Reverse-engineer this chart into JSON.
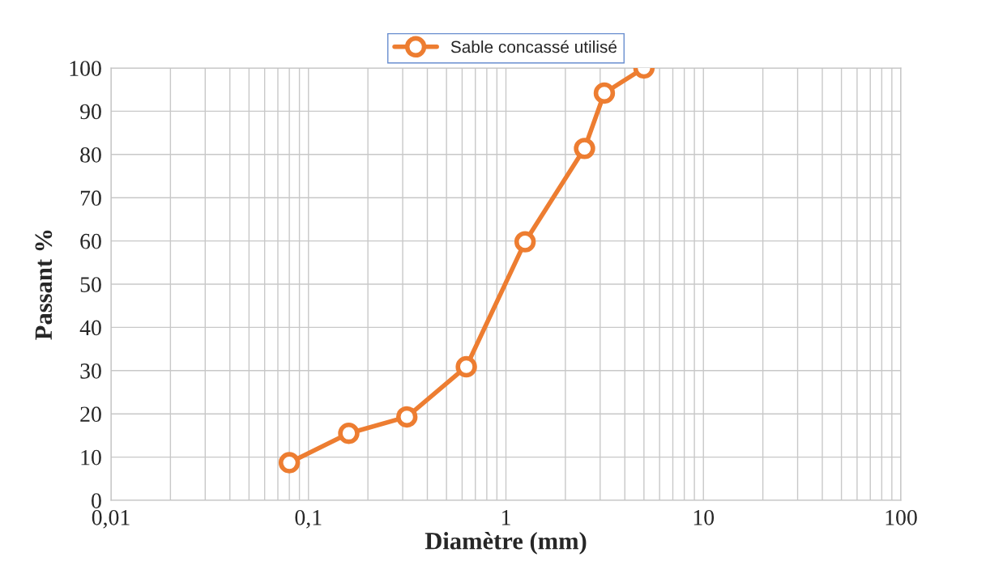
{
  "chart_data": {
    "type": "line",
    "xlabel": "Diamètre (mm)",
    "ylabel": "Passant %",
    "x": [
      0.08,
      0.16,
      0.315,
      0.63,
      1.25,
      2.5,
      3.15,
      5
    ],
    "series": [
      {
        "name": "Sable concassé utilisé",
        "color": "#ed7d31",
        "values": [
          8.7,
          15.5,
          19.3,
          30.9,
          59.8,
          81.4,
          94.2,
          100
        ]
      }
    ],
    "log": "x",
    "xlim": [
      0.01,
      100
    ],
    "xticks": [
      {
        "value": 0.01,
        "label": "0,01"
      },
      {
        "value": 0.1,
        "label": "0,1"
      },
      1,
      10,
      100
    ],
    "ylim": [
      0,
      100
    ],
    "yticks": [
      0,
      10,
      20,
      30,
      40,
      50,
      60,
      70,
      80,
      90,
      100
    ],
    "grid": true,
    "legend": "top",
    "marker": "circle",
    "line_style": "solid"
  }
}
